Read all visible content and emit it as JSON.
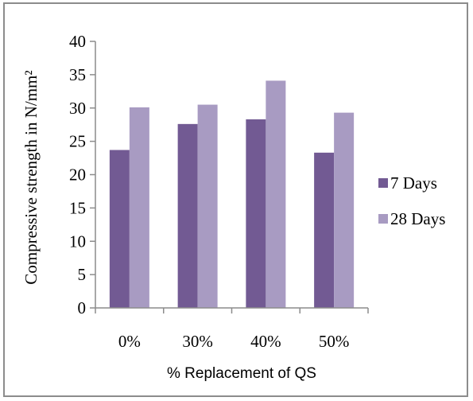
{
  "chart_data": {
    "type": "bar",
    "title": "",
    "xlabel": "% Replacement of QS",
    "ylabel": "Compressive strength in N/mm²",
    "categories": [
      "0%",
      "30%",
      "40%",
      "50%"
    ],
    "series": [
      {
        "name": "7 Days",
        "color": "#725a93",
        "values": [
          23.7,
          27.6,
          28.3,
          23.3
        ]
      },
      {
        "name": "28 Days",
        "color": "#a89bc2",
        "values": [
          30.1,
          30.5,
          34.1,
          29.3
        ]
      }
    ],
    "ylim": [
      0,
      40
    ],
    "yticks": [
      0,
      5,
      10,
      15,
      20,
      25,
      30,
      35,
      40
    ],
    "grid": false,
    "legend": "right"
  }
}
